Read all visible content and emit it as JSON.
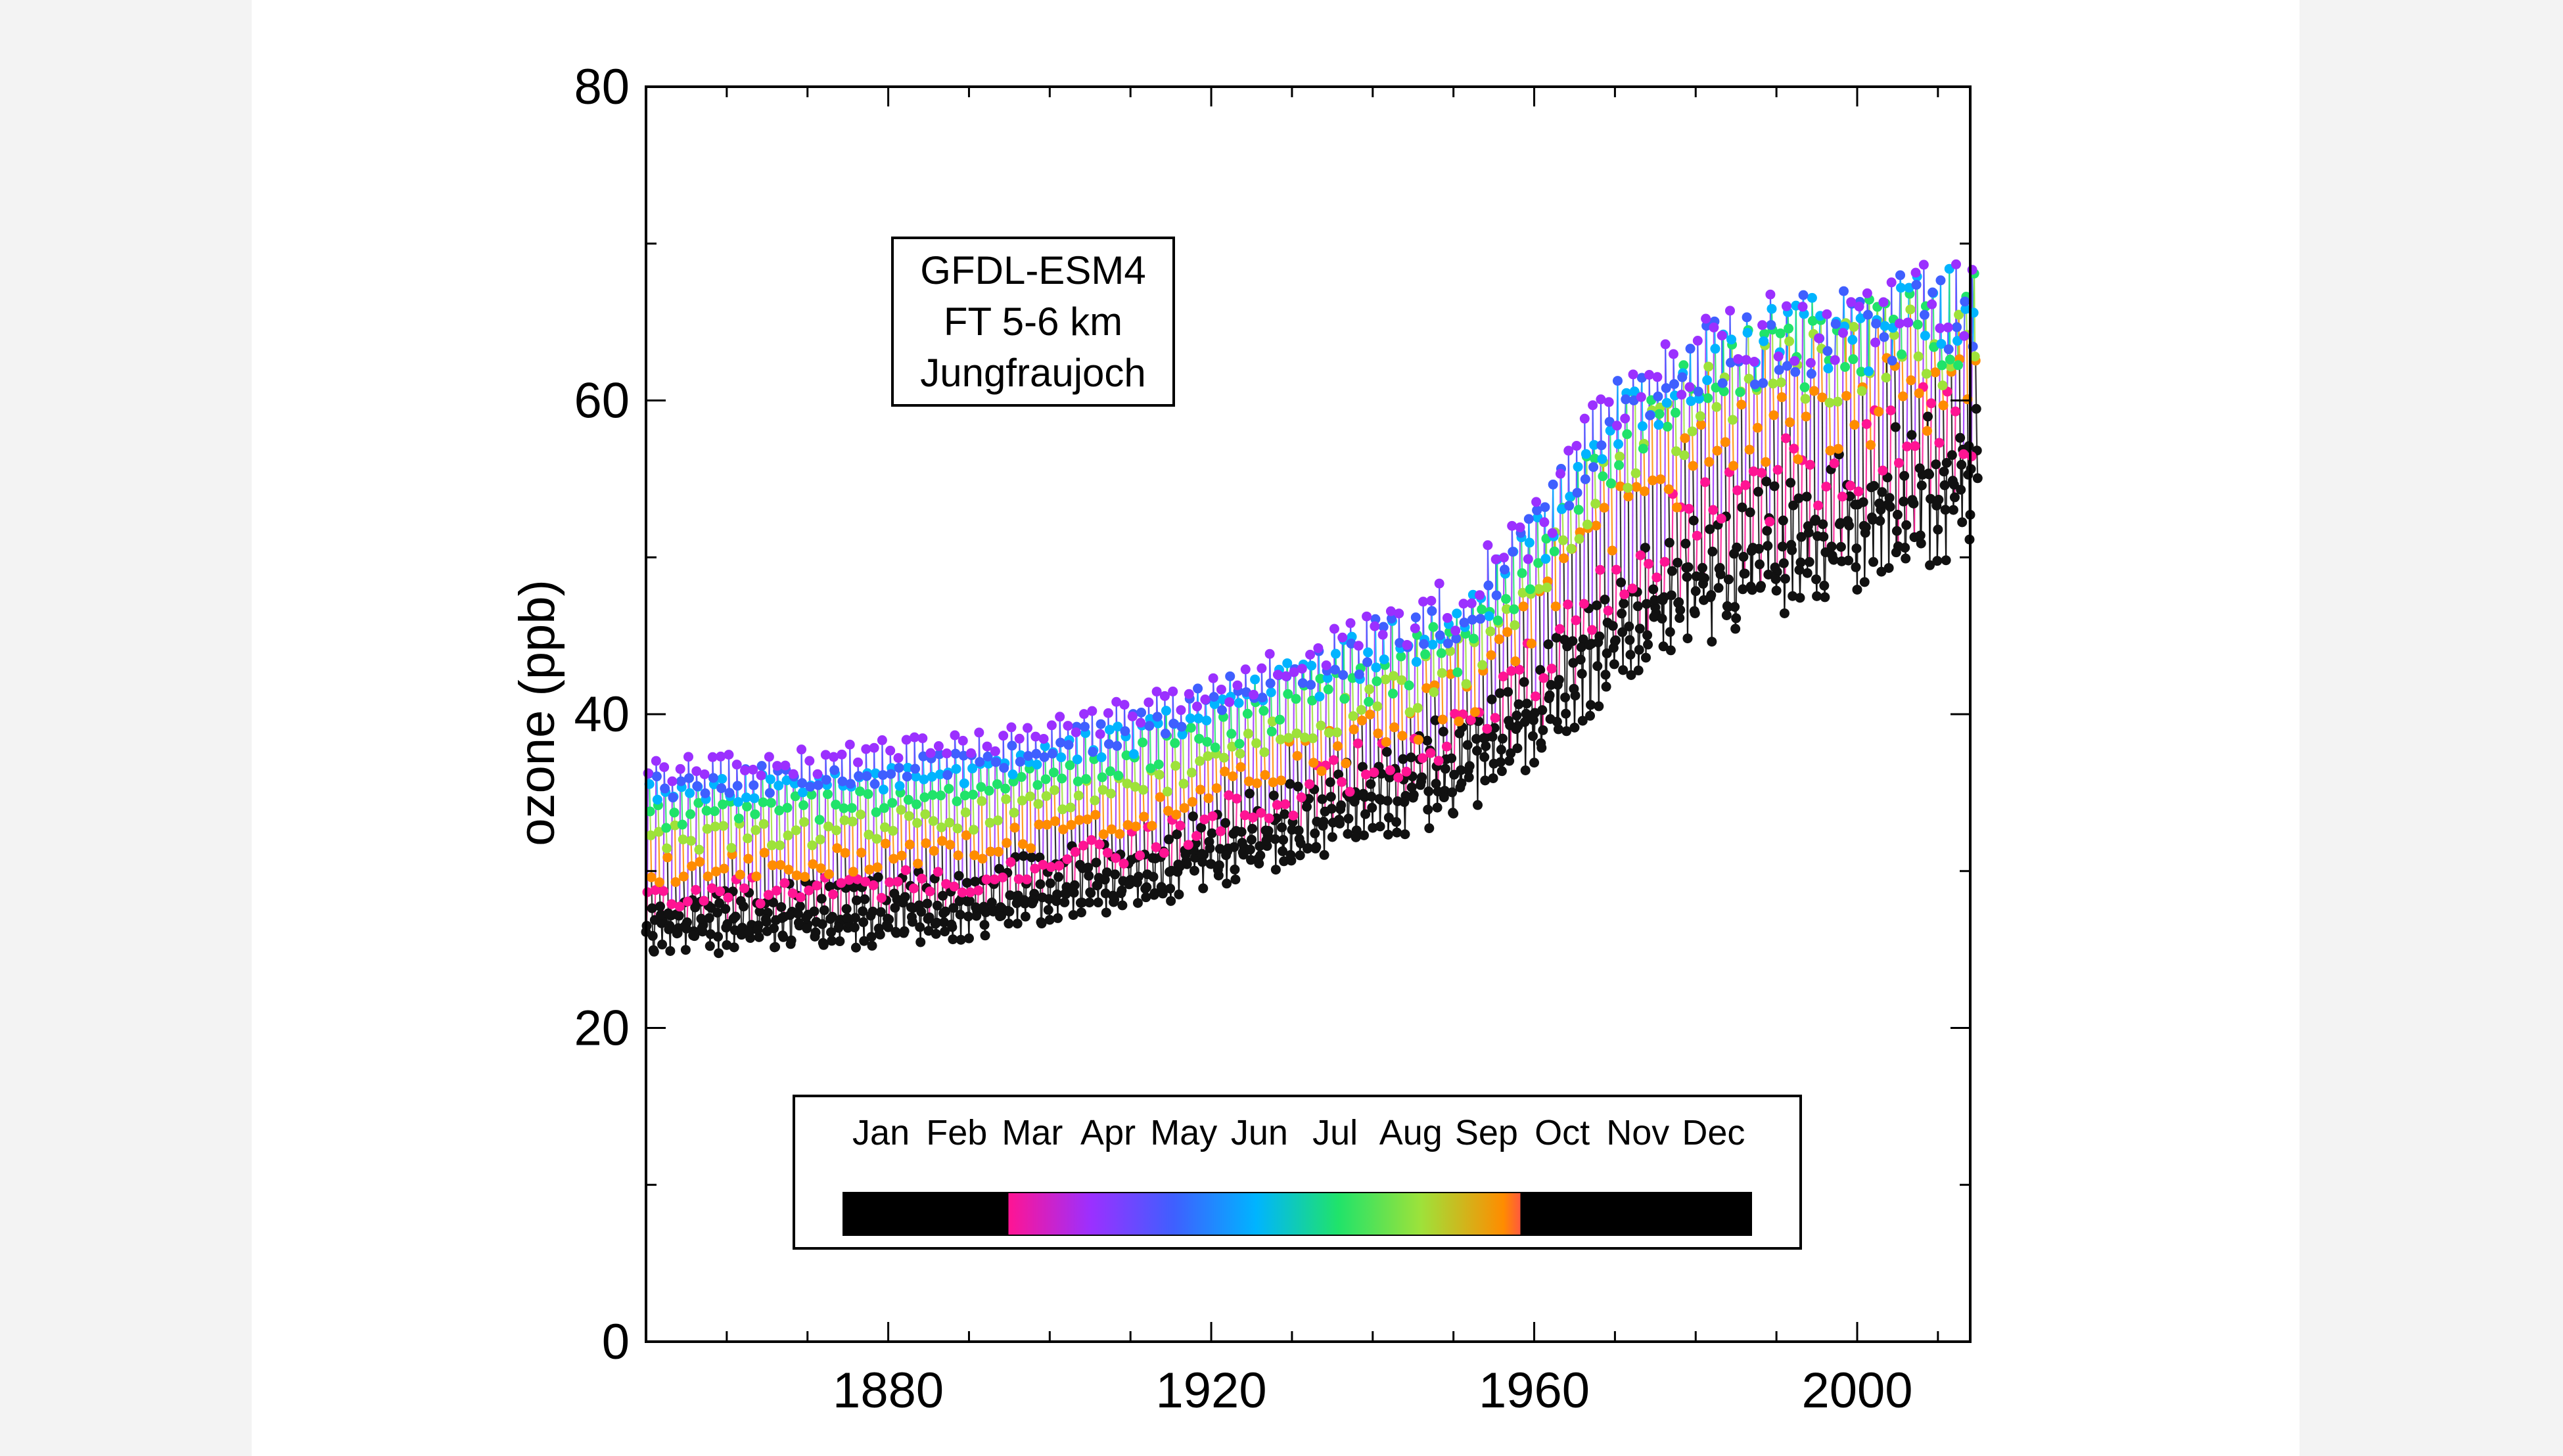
{
  "chart_data": {
    "type": "line",
    "ylabel": "ozone (ppb)",
    "xlabel": "",
    "xlim": [
      1850,
      2014
    ],
    "ylim": [
      0,
      80
    ],
    "x_ticks": [
      1880,
      1920,
      1960,
      2000
    ],
    "y_ticks": [
      0,
      20,
      40,
      60,
      80
    ],
    "annotation": [
      "GFDL-ESM4",
      "FT 5-6 km",
      "Jungfraujoch"
    ],
    "month_legend": {
      "labels": [
        "Jan",
        "Feb",
        "Mar",
        "Apr",
        "May",
        "Jun",
        "Jul",
        "Aug",
        "Sep",
        "Oct",
        "Nov",
        "Dec"
      ],
      "colors": [
        "#000000",
        "#000000",
        "#ff1493",
        "#9b30ff",
        "#3f5fff",
        "#00b4ff",
        "#20e36a",
        "#9ee23a",
        "#ff8c00",
        "#000000",
        "#000000",
        "#000000"
      ]
    },
    "series": [
      {
        "month": "Jan",
        "color": "#111111",
        "anchors": {
          "x": [
            1850,
            1870,
            1890,
            1910,
            1930,
            1950,
            1960,
            1970,
            1980,
            1990,
            2000,
            2014
          ],
          "y": [
            25.5,
            25.8,
            26.5,
            28.5,
            31.5,
            35,
            38.5,
            43.5,
            46.5,
            48.5,
            50.5,
            53
          ]
        }
      },
      {
        "month": "Feb",
        "color": "#111111",
        "anchors": {
          "x": [
            1850,
            1870,
            1890,
            1910,
            1930,
            1950,
            1960,
            1970,
            1980,
            1990,
            2000,
            2014
          ],
          "y": [
            27,
            27.3,
            28,
            30,
            33,
            37,
            40.5,
            45.5,
            48.5,
            50.5,
            52.5,
            55
          ]
        }
      },
      {
        "month": "Mar",
        "color": "#ff1493",
        "anchors": {
          "x": [
            1850,
            1870,
            1890,
            1910,
            1930,
            1950,
            1960,
            1970,
            1980,
            1990,
            2000,
            2014
          ],
          "y": [
            28.5,
            28.8,
            29.5,
            31.5,
            35,
            39,
            43,
            49,
            53,
            55,
            57,
            59
          ]
        }
      },
      {
        "month": "Apr",
        "color": "#9b30ff",
        "anchors": {
          "x": [
            1850,
            1870,
            1890,
            1910,
            1930,
            1950,
            1960,
            1970,
            1980,
            1990,
            2000,
            2014
          ],
          "y": [
            36.5,
            37,
            38,
            40,
            43,
            47,
            52,
            60,
            63,
            64.5,
            65.5,
            67
          ]
        }
      },
      {
        "month": "May",
        "color": "#3f5fff",
        "anchors": {
          "x": [
            1850,
            1870,
            1890,
            1910,
            1930,
            1950,
            1960,
            1970,
            1980,
            1990,
            2000,
            2014
          ],
          "y": [
            35.5,
            36,
            37,
            39,
            42.5,
            46.5,
            51.5,
            59.5,
            62.5,
            64,
            65,
            66.5
          ]
        }
      },
      {
        "month": "Jun",
        "color": "#00b4ff",
        "anchors": {
          "x": [
            1850,
            1870,
            1890,
            1910,
            1930,
            1950,
            1960,
            1970,
            1980,
            1990,
            2000,
            2014
          ],
          "y": [
            35,
            35.5,
            36.5,
            38.5,
            42,
            46,
            51,
            59,
            62,
            63.5,
            64.5,
            66
          ]
        }
      },
      {
        "month": "Jul",
        "color": "#20e36a",
        "anchors": {
          "x": [
            1850,
            1870,
            1890,
            1910,
            1930,
            1950,
            1960,
            1970,
            1980,
            1990,
            2000,
            2014
          ],
          "y": [
            33.5,
            34,
            35,
            37,
            40.5,
            44.5,
            49.5,
            57.5,
            61,
            63,
            64,
            65
          ]
        }
      },
      {
        "month": "Aug",
        "color": "#9ee23a",
        "anchors": {
          "x": [
            1850,
            1870,
            1890,
            1910,
            1930,
            1950,
            1960,
            1970,
            1980,
            1990,
            2000,
            2014
          ],
          "y": [
            32,
            32.5,
            33.5,
            35.5,
            39,
            43,
            48,
            56,
            59.5,
            61.5,
            62.5,
            64
          ]
        }
      },
      {
        "month": "Sep",
        "color": "#ff8c00",
        "anchors": {
          "x": [
            1850,
            1870,
            1890,
            1910,
            1930,
            1950,
            1960,
            1970,
            1980,
            1990,
            2000,
            2014
          ],
          "y": [
            30,
            30.5,
            31.5,
            33.5,
            37,
            41,
            46,
            53,
            56.5,
            58.5,
            59.5,
            61
          ]
        }
      },
      {
        "month": "Oct",
        "color": "#111111",
        "anchors": {
          "x": [
            1850,
            1870,
            1890,
            1910,
            1930,
            1950,
            1960,
            1970,
            1980,
            1990,
            2000,
            2014
          ],
          "y": [
            28,
            28.5,
            29.5,
            31.5,
            34.5,
            38.5,
            42,
            47.5,
            51,
            53,
            55,
            57.5
          ]
        }
      },
      {
        "month": "Nov",
        "color": "#111111",
        "anchors": {
          "x": [
            1850,
            1870,
            1890,
            1910,
            1930,
            1950,
            1960,
            1970,
            1980,
            1990,
            2000,
            2014
          ],
          "y": [
            26.5,
            27,
            27.5,
            29.5,
            32.5,
            36.5,
            40,
            45,
            48,
            50,
            52,
            54.5
          ]
        }
      },
      {
        "month": "Dec",
        "color": "#111111",
        "anchors": {
          "x": [
            1850,
            1870,
            1890,
            1910,
            1930,
            1950,
            1960,
            1970,
            1980,
            1990,
            2000,
            2014
          ],
          "y": [
            25.8,
            26,
            26.8,
            28.8,
            31.8,
            35.5,
            39,
            44,
            47,
            49,
            51,
            53.5
          ]
        }
      }
    ]
  }
}
